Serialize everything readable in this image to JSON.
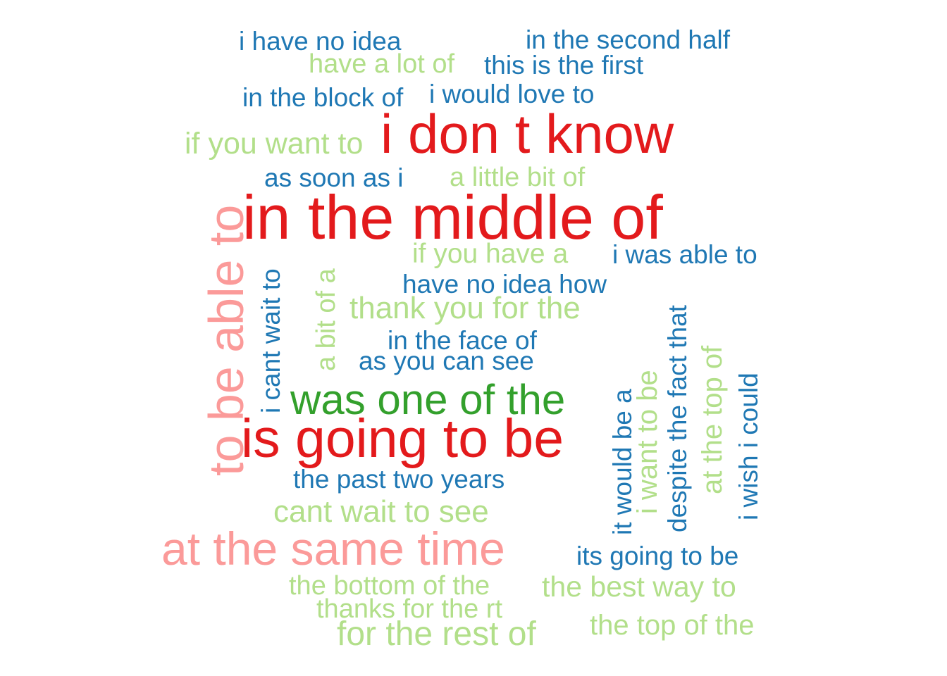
{
  "word_cloud": {
    "colors": {
      "dark_blue": "#1f78b4",
      "light_green": "#b2df8a",
      "red": "#e31a1c",
      "pink": "#fb9a99",
      "green": "#33a02c"
    },
    "words": [
      {
        "text": "i have no idea",
        "color": "dark_blue",
        "orientation": "horizontal"
      },
      {
        "text": "in the second half",
        "color": "dark_blue",
        "orientation": "horizontal"
      },
      {
        "text": "have a lot of",
        "color": "light_green",
        "orientation": "horizontal"
      },
      {
        "text": "this is the first",
        "color": "dark_blue",
        "orientation": "horizontal"
      },
      {
        "text": "in the block of",
        "color": "dark_blue",
        "orientation": "horizontal"
      },
      {
        "text": "i would love to",
        "color": "dark_blue",
        "orientation": "horizontal"
      },
      {
        "text": "i don t know",
        "color": "red",
        "orientation": "horizontal"
      },
      {
        "text": "if you want to",
        "color": "light_green",
        "orientation": "horizontal"
      },
      {
        "text": "as soon as i",
        "color": "dark_blue",
        "orientation": "horizontal"
      },
      {
        "text": "a little bit of",
        "color": "light_green",
        "orientation": "horizontal"
      },
      {
        "text": "in the middle of",
        "color": "red",
        "orientation": "horizontal"
      },
      {
        "text": "if you have a",
        "color": "light_green",
        "orientation": "horizontal"
      },
      {
        "text": "i was able to",
        "color": "dark_blue",
        "orientation": "horizontal"
      },
      {
        "text": "have no idea how",
        "color": "dark_blue",
        "orientation": "horizontal"
      },
      {
        "text": "thank you for the",
        "color": "light_green",
        "orientation": "horizontal"
      },
      {
        "text": "in the face of",
        "color": "dark_blue",
        "orientation": "horizontal"
      },
      {
        "text": "as you can see",
        "color": "dark_blue",
        "orientation": "horizontal"
      },
      {
        "text": "was one of the",
        "color": "green",
        "orientation": "horizontal"
      },
      {
        "text": "is going to be",
        "color": "red",
        "orientation": "horizontal"
      },
      {
        "text": "the past two years",
        "color": "dark_blue",
        "orientation": "horizontal"
      },
      {
        "text": "cant wait to see",
        "color": "light_green",
        "orientation": "horizontal"
      },
      {
        "text": "at the same time",
        "color": "pink",
        "orientation": "horizontal"
      },
      {
        "text": "its going to be",
        "color": "dark_blue",
        "orientation": "horizontal"
      },
      {
        "text": "the bottom of the",
        "color": "light_green",
        "orientation": "horizontal"
      },
      {
        "text": "the best way to",
        "color": "light_green",
        "orientation": "horizontal"
      },
      {
        "text": "thanks for the rt",
        "color": "light_green",
        "orientation": "horizontal"
      },
      {
        "text": "for the rest of",
        "color": "light_green",
        "orientation": "horizontal"
      },
      {
        "text": "the top of the",
        "color": "light_green",
        "orientation": "horizontal"
      },
      {
        "text": "to be able to",
        "color": "pink",
        "orientation": "vertical"
      },
      {
        "text": "i cant wait to",
        "color": "dark_blue",
        "orientation": "vertical"
      },
      {
        "text": "a bit of a",
        "color": "light_green",
        "orientation": "vertical"
      },
      {
        "text": "it would be a",
        "color": "dark_blue",
        "orientation": "vertical"
      },
      {
        "text": "i want to be",
        "color": "light_green",
        "orientation": "vertical"
      },
      {
        "text": "despite the fact that",
        "color": "dark_blue",
        "orientation": "vertical"
      },
      {
        "text": "at the top of",
        "color": "light_green",
        "orientation": "vertical"
      },
      {
        "text": "i wish i could",
        "color": "dark_blue",
        "orientation": "vertical"
      }
    ]
  }
}
